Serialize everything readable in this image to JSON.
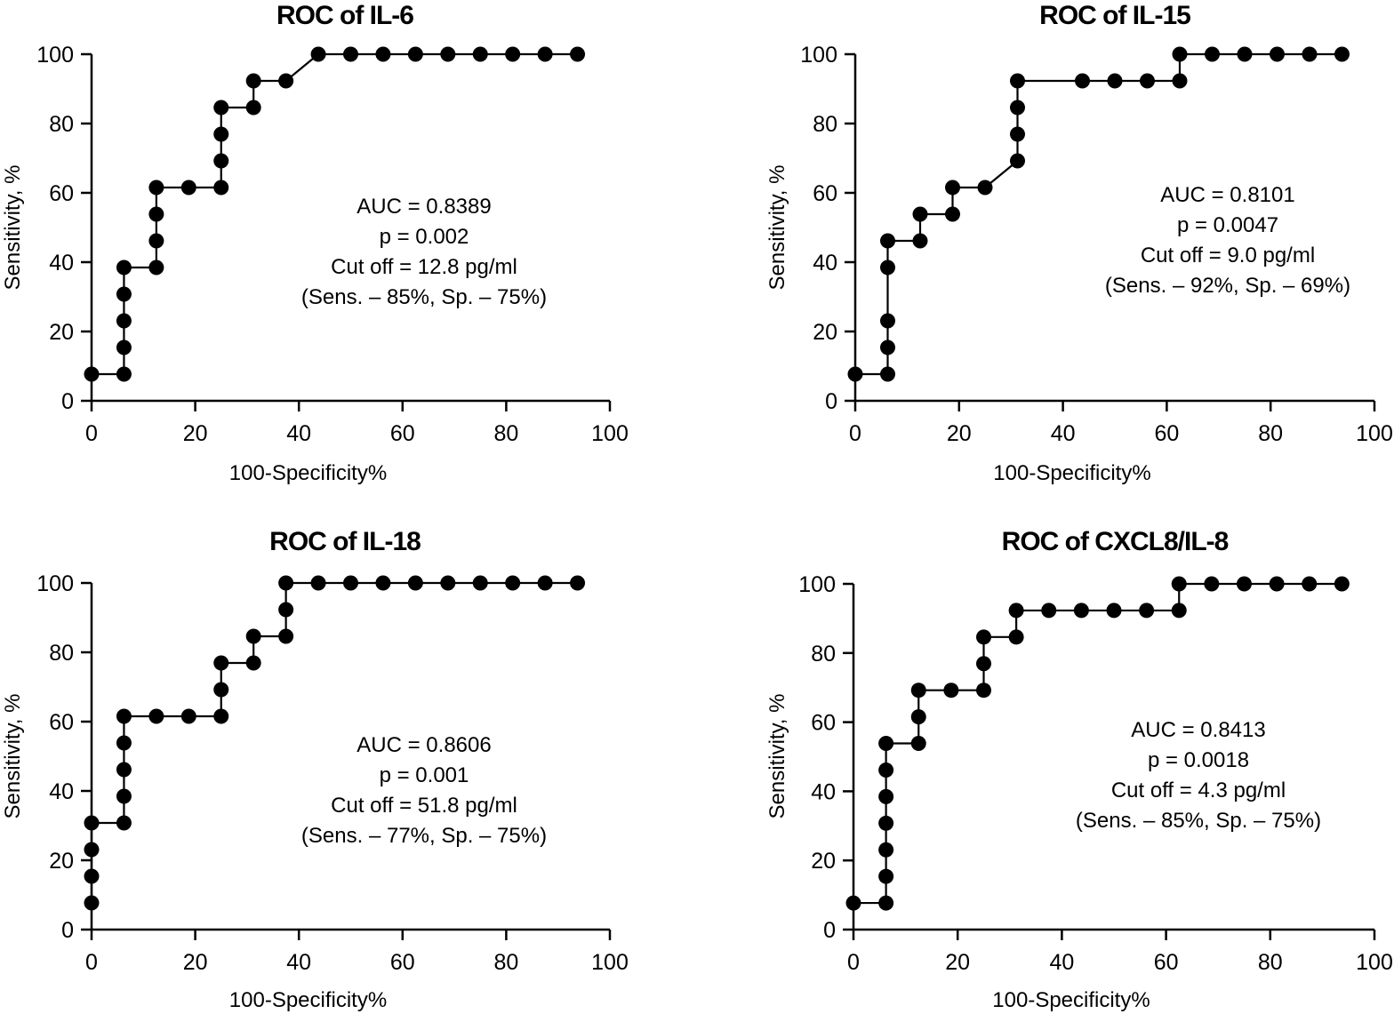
{
  "chart_data": [
    {
      "type": "line",
      "title": "ROC of IL-6",
      "xlabel": "100-Specificity%",
      "ylabel": "Sensitivity, %",
      "xlim": [
        0,
        100
      ],
      "ylim": [
        0,
        100
      ],
      "xticks": [
        "0",
        "20",
        "40",
        "60",
        "80",
        "100"
      ],
      "yticks": [
        "0",
        "20",
        "40",
        "60",
        "80",
        "100"
      ],
      "grid": false,
      "markers": "filled-circle",
      "annotation": [
        "AUC = 0.8389",
        "p = 0.002",
        "Cut off = 12.8 pg/ml",
        "(Sens. – 85%, Sp. – 75%)"
      ],
      "x": [
        0,
        6.25,
        6.25,
        6.25,
        6.25,
        6.25,
        12.5,
        12.5,
        12.5,
        12.5,
        18.75,
        25,
        25,
        25,
        25,
        31.25,
        31.25,
        37.5,
        43.75,
        50,
        56.25,
        62.5,
        68.75,
        75,
        81.25,
        87.5,
        93.75
      ],
      "y": [
        7.69,
        7.69,
        15.38,
        23.08,
        30.77,
        38.46,
        38.46,
        46.15,
        53.85,
        61.54,
        61.54,
        61.54,
        69.23,
        76.92,
        84.62,
        84.62,
        92.31,
        92.31,
        100,
        100,
        100,
        100,
        100,
        100,
        100,
        100,
        100
      ]
    },
    {
      "type": "line",
      "title": "ROC of IL-15",
      "xlabel": "100-Specificity%",
      "ylabel": "Sensitivity, %",
      "xlim": [
        0,
        100
      ],
      "ylim": [
        0,
        100
      ],
      "xticks": [
        "0",
        "20",
        "40",
        "60",
        "80",
        "100"
      ],
      "yticks": [
        "0",
        "20",
        "40",
        "60",
        "80",
        "100"
      ],
      "grid": false,
      "markers": "filled-circle",
      "annotation": [
        "AUC = 0.8101",
        "p = 0.0047",
        "Cut off = 9.0 pg/ml",
        "(Sens. – 92%, Sp. – 69%)"
      ],
      "x": [
        0,
        6.25,
        6.25,
        6.25,
        6.25,
        6.25,
        12.5,
        12.5,
        18.75,
        18.75,
        25,
        31.25,
        31.25,
        31.25,
        31.25,
        43.75,
        50,
        56.25,
        62.5,
        62.5,
        68.75,
        75,
        81.25,
        87.5,
        93.75
      ],
      "y": [
        7.69,
        7.69,
        15.38,
        23.08,
        38.46,
        46.15,
        46.15,
        53.85,
        53.85,
        61.54,
        61.54,
        69.23,
        76.92,
        84.62,
        92.31,
        92.31,
        92.31,
        92.31,
        92.31,
        100,
        100,
        100,
        100,
        100,
        100
      ]
    },
    {
      "type": "line",
      "title": "ROC of IL-18",
      "xlabel": "100-Specificity%",
      "ylabel": "Sensitivity, %",
      "xlim": [
        0,
        100
      ],
      "ylim": [
        0,
        100
      ],
      "xticks": [
        "0",
        "20",
        "40",
        "60",
        "80",
        "100"
      ],
      "yticks": [
        "0",
        "20",
        "40",
        "60",
        "80",
        "100"
      ],
      "grid": false,
      "markers": "filled-circle",
      "annotation": [
        "AUC = 0.8606",
        "p = 0.001",
        "Cut off = 51.8 pg/ml",
        "(Sens. – 77%, Sp. – 75%)"
      ],
      "x": [
        0,
        0,
        0,
        0,
        6.25,
        6.25,
        6.25,
        6.25,
        6.25,
        12.5,
        18.75,
        25,
        25,
        25,
        31.25,
        31.25,
        37.5,
        37.5,
        37.5,
        43.75,
        50,
        56.25,
        62.5,
        68.75,
        75,
        81.25,
        87.5,
        93.75
      ],
      "y": [
        7.69,
        15.38,
        23.08,
        30.77,
        30.77,
        38.46,
        46.15,
        53.85,
        61.54,
        61.54,
        61.54,
        61.54,
        69.23,
        76.92,
        76.92,
        84.62,
        84.62,
        92.31,
        100,
        100,
        100,
        100,
        100,
        100,
        100,
        100,
        100,
        100
      ]
    },
    {
      "type": "line",
      "title": "ROC of CXCL8/IL-8",
      "xlabel": "100-Specificity%",
      "ylabel": "Sensitivity, %",
      "xlim": [
        0,
        100
      ],
      "ylim": [
        0,
        100
      ],
      "xticks": [
        "0",
        "20",
        "40",
        "60",
        "80",
        "100"
      ],
      "yticks": [
        "0",
        "20",
        "40",
        "60",
        "80",
        "100"
      ],
      "grid": false,
      "markers": "filled-circle",
      "annotation": [
        "AUC = 0.8413",
        "p = 0.0018",
        "Cut off = 4.3 pg/ml",
        "(Sens. – 85%, Sp. – 75%)"
      ],
      "x": [
        0,
        6.25,
        6.25,
        6.25,
        6.25,
        6.25,
        6.25,
        6.25,
        12.5,
        12.5,
        12.5,
        18.75,
        25,
        25,
        25,
        31.25,
        31.25,
        37.5,
        43.75,
        50,
        56.25,
        62.5,
        62.5,
        68.75,
        75,
        81.25,
        87.5,
        93.75
      ],
      "y": [
        7.69,
        7.69,
        15.38,
        23.08,
        30.77,
        38.46,
        46.15,
        53.85,
        53.85,
        61.54,
        69.23,
        69.23,
        69.23,
        76.92,
        84.62,
        84.62,
        92.31,
        92.31,
        92.31,
        92.31,
        92.31,
        92.31,
        100,
        100,
        100,
        100,
        100,
        100
      ]
    }
  ]
}
